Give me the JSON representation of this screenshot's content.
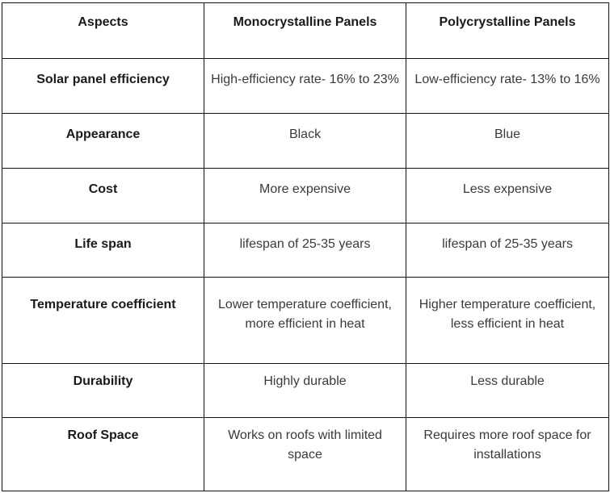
{
  "headers": [
    "Aspects",
    "Monocrystalline Panels",
    "Polycrystalline Panels"
  ],
  "rows": [
    {
      "aspect": "Solar panel efficiency",
      "mono": "High-efficiency rate- 16% to 23%",
      "poly": "Low-efficiency rate- 13% to 16%"
    },
    {
      "aspect": "Appearance",
      "mono": "Black",
      "poly": "Blue"
    },
    {
      "aspect": "Cost",
      "mono": "More expensive",
      "poly": "Less expensive"
    },
    {
      "aspect": "Life span",
      "mono": "lifespan of 25-35 years",
      "poly": "lifespan of 25-35 years"
    },
    {
      "aspect": "Temperature coefficient",
      "mono": "Lower temperature coefficient, more efficient in heat",
      "poly": "Higher temperature coefficient, less efficient in heat"
    },
    {
      "aspect": "Durability",
      "mono": "Highly durable",
      "poly": "Less durable"
    },
    {
      "aspect": "Roof Space",
      "mono": "Works on roofs with limited space",
      "poly": "Requires more roof space for installations"
    }
  ]
}
